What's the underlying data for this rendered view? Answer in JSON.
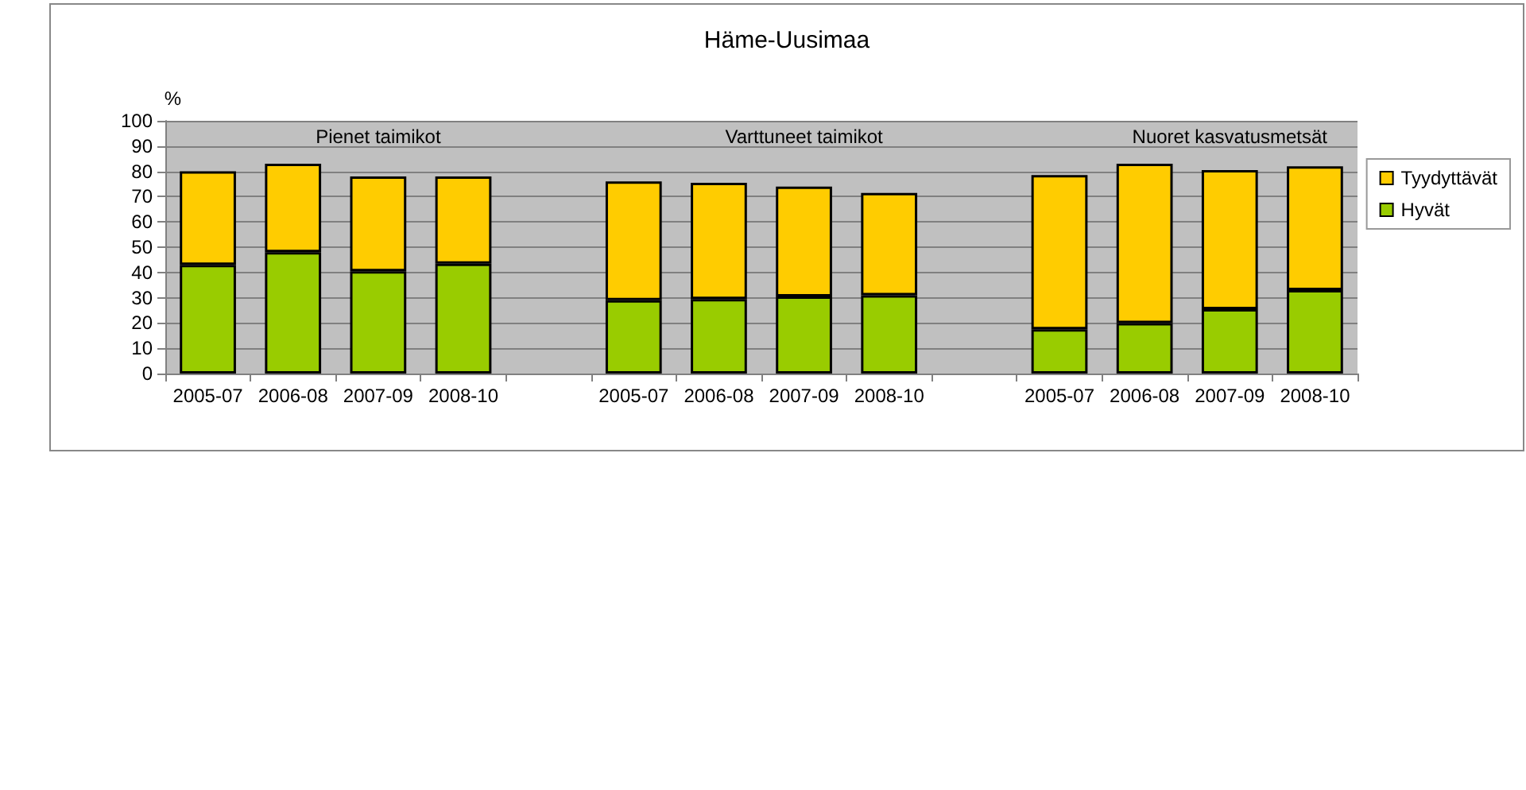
{
  "chart_data": {
    "type": "bar",
    "title": "Häme-Uusimaa",
    "ylabel": "%",
    "categories": [
      "2005-07",
      "2006-08",
      "2007-09",
      "2008-10",
      null,
      "2005-07",
      "2006-08",
      "2007-09",
      "2008-10",
      null,
      "2005-07",
      "2006-08",
      "2007-09",
      "2008-10"
    ],
    "stacked": true,
    "series": [
      {
        "name": "Hyvät",
        "color": "#99cc00",
        "values": [
          43,
          48,
          40.5,
          43.5,
          null,
          29,
          29.5,
          30.5,
          31,
          null,
          17.5,
          20,
          25.5,
          33
        ]
      },
      {
        "name": "Tyydyttävät",
        "color": "#ffcc00",
        "values": [
          37,
          35,
          37.5,
          34.5,
          null,
          47,
          46,
          43.5,
          40.5,
          null,
          61,
          63,
          55,
          49
        ]
      }
    ],
    "annotations": [
      "Pienet taimikot",
      "Varttuneet taimikot",
      "Nuoret kasvatusmetsät"
    ],
    "ylim": [
      0,
      100
    ],
    "yticks": [
      0,
      10,
      20,
      30,
      40,
      50,
      60,
      70,
      80,
      90,
      100
    ],
    "grid": "y",
    "legend": "right"
  }
}
